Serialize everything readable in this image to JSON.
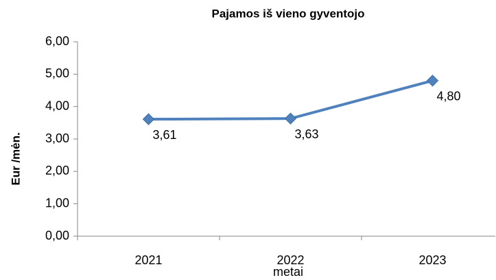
{
  "chart_data": {
    "type": "line",
    "title": "Pajamos iš vieno gyventojo",
    "x_label": "metai",
    "y_label": "Eur /mėn.",
    "categories": [
      "2021",
      "2022",
      "2023"
    ],
    "series": [
      {
        "name": "Pajamos iš vieno gyventojo",
        "color": "#4f81bd",
        "values": [
          3.61,
          3.63,
          4.8
        ],
        "value_labels": [
          "3,61",
          "3,63",
          "4,80"
        ]
      }
    ],
    "ylim": [
      0,
      6
    ],
    "yticks": [
      {
        "value": 0,
        "label": "0,00"
      },
      {
        "value": 1,
        "label": "1,00"
      },
      {
        "value": 2,
        "label": "2,00"
      },
      {
        "value": 3,
        "label": "3,00"
      },
      {
        "value": 4,
        "label": "4,00"
      },
      {
        "value": 5,
        "label": "5,00"
      },
      {
        "value": 6,
        "label": "6,00"
      }
    ],
    "grid": false
  }
}
